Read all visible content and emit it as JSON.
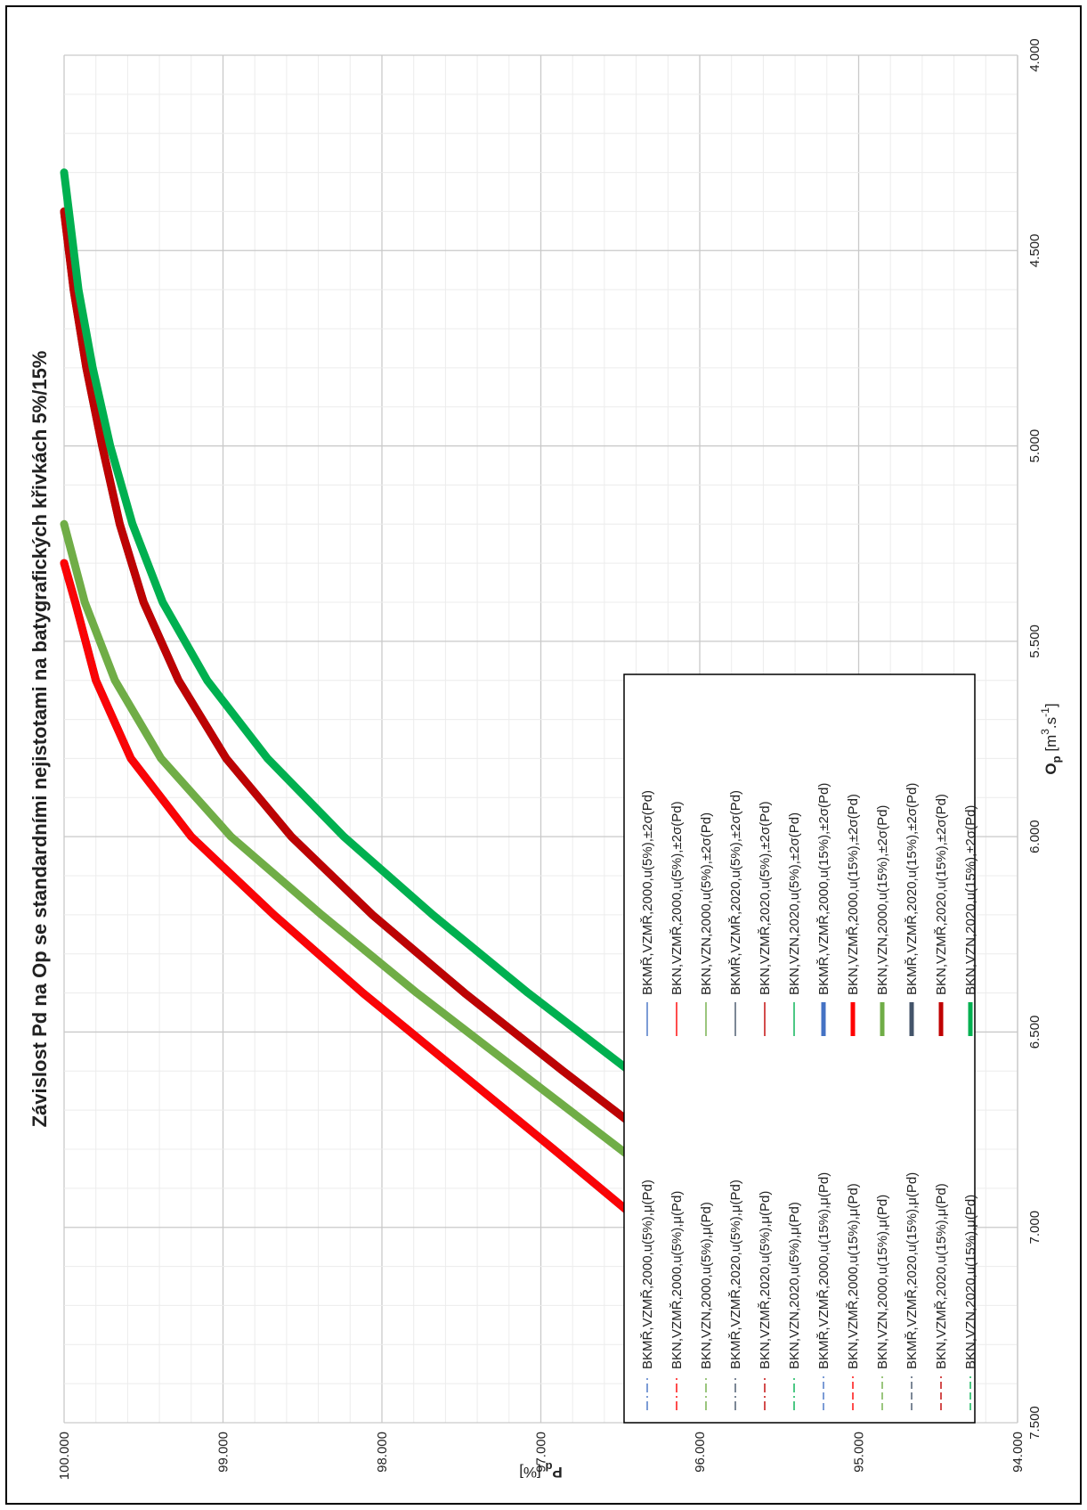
{
  "chart_data": {
    "type": "line",
    "title": "Závislost Pd na Op se standardními nejistotami na batygrafických křivkách 5%/15%",
    "xlabel": {
      "main": "O",
      "sub": "p",
      "unit_open": " [m",
      "sup": "3",
      "unit_mid": ".s",
      "sup2": "-1",
      "unit_close": "]"
    },
    "ylabel": {
      "main": "P",
      "sub": "d",
      "unit": " [%]"
    },
    "xlim": [
      4.0,
      7.5
    ],
    "ylim": [
      94.0,
      100.0
    ],
    "x_reversed": true,
    "x_ticks": [
      "7.500",
      "7.000",
      "6.500",
      "6.000",
      "5.500",
      "5.000",
      "4.500",
      "4.000"
    ],
    "y_ticks": [
      "94.000",
      "95.000",
      "96.000",
      "97.000",
      "98.000",
      "99.000",
      "100.000"
    ],
    "grid": true,
    "legend_position": "inside-lower-right",
    "series": [
      {
        "name": "BKMŘ,VZMŘ,2000,u(5%),μ(Pd)",
        "color": "#4472C4",
        "dash": "dashdot",
        "width": 1.4,
        "x": [
          7.0,
          6.8,
          6.6,
          6.4,
          6.2,
          6.0,
          5.8,
          5.6,
          5.4,
          5.3
        ],
        "y": [
          96.33,
          96.92,
          97.52,
          98.12,
          98.68,
          99.2,
          99.58,
          99.8,
          99.93,
          100.0
        ]
      },
      {
        "name": "BKN,VZMŘ,2000,u(5%),μ(Pd)",
        "color": "#FF0000",
        "dash": "dashdot",
        "width": 1.4,
        "x": [
          7.0,
          6.8,
          6.6,
          6.4,
          6.2,
          6.0,
          5.8,
          5.6,
          5.4,
          5.3
        ],
        "y": [
          96.33,
          96.92,
          97.52,
          98.12,
          98.68,
          99.2,
          99.58,
          99.8,
          99.93,
          100.0
        ]
      },
      {
        "name": "BKN,VZN,2000,u(5%),μ(Pd)",
        "color": "#70AD47",
        "dash": "dashdot",
        "width": 1.4,
        "x": [
          7.0,
          6.8,
          6.6,
          6.4,
          6.2,
          6.0,
          5.8,
          5.6,
          5.4,
          5.2
        ],
        "y": [
          95.86,
          96.5,
          97.14,
          97.78,
          98.38,
          98.95,
          99.39,
          99.68,
          99.87,
          100.0
        ]
      },
      {
        "name": "BKMŘ,VZMŘ,2020,u(5%),μ(Pd)",
        "color": "#44546A",
        "dash": "dashdot",
        "width": 1.4,
        "x": [
          7.0,
          6.8,
          6.6,
          6.4,
          6.2,
          6.0,
          5.8,
          5.6,
          5.4,
          5.2,
          5.0,
          4.8,
          4.6,
          4.4
        ],
        "y": [
          95.58,
          96.22,
          96.86,
          97.48,
          98.06,
          98.57,
          98.98,
          99.28,
          99.5,
          99.65,
          99.76,
          99.86,
          99.94,
          100.0
        ]
      },
      {
        "name": "BKN,VZMŘ,2020,u(5%),μ(Pd)",
        "color": "#C00000",
        "dash": "dashdot",
        "width": 1.4,
        "x": [
          7.0,
          6.8,
          6.6,
          6.4,
          6.2,
          6.0,
          5.8,
          5.6,
          5.4,
          5.2,
          5.0,
          4.8,
          4.6,
          4.4
        ],
        "y": [
          95.58,
          96.22,
          96.86,
          97.48,
          98.06,
          98.57,
          98.98,
          99.28,
          99.5,
          99.65,
          99.76,
          99.86,
          99.94,
          100.0
        ]
      },
      {
        "name": "BKN,VZN,2020,u(5%),μ(Pd)",
        "color": "#00B050",
        "dash": "dashdot",
        "width": 1.4,
        "x": [
          7.0,
          6.8,
          6.6,
          6.4,
          6.2,
          6.0,
          5.8,
          5.6,
          5.4,
          5.2,
          5.0,
          4.8,
          4.6,
          4.4,
          4.3
        ],
        "y": [
          95.17,
          95.8,
          96.44,
          97.08,
          97.68,
          98.24,
          98.72,
          99.1,
          99.38,
          99.57,
          99.71,
          99.82,
          99.91,
          99.97,
          100.0
        ]
      },
      {
        "name": "BKMŘ,VZMŘ,2000,u(15%),μ(Pd)",
        "color": "#4472C4",
        "dash": "dash",
        "width": 1.4,
        "x": [
          7.0,
          6.8,
          6.6,
          6.4,
          6.2,
          6.0,
          5.8,
          5.6,
          5.4,
          5.3
        ],
        "y": [
          96.33,
          96.92,
          97.52,
          98.12,
          98.68,
          99.2,
          99.58,
          99.8,
          99.93,
          100.0
        ]
      },
      {
        "name": "BKN,VZMŘ,2000,u(15%),μ(Pd)",
        "color": "#FF0000",
        "dash": "dash",
        "width": 1.4,
        "x": [
          7.0,
          6.8,
          6.6,
          6.4,
          6.2,
          6.0,
          5.8,
          5.6,
          5.4,
          5.3
        ],
        "y": [
          96.33,
          96.92,
          97.52,
          98.12,
          98.68,
          99.2,
          99.58,
          99.8,
          99.93,
          100.0
        ]
      },
      {
        "name": "BKN,VZN,2000,u(15%),μ(Pd)",
        "color": "#70AD47",
        "dash": "dash",
        "width": 1.4,
        "x": [
          7.0,
          6.8,
          6.6,
          6.4,
          6.2,
          6.0,
          5.8,
          5.6,
          5.4,
          5.2
        ],
        "y": [
          95.86,
          96.5,
          97.14,
          97.78,
          98.38,
          98.95,
          99.39,
          99.68,
          99.87,
          100.0
        ]
      },
      {
        "name": "BKMŘ,VZMŘ,2020,u(15%),μ(Pd)",
        "color": "#44546A",
        "dash": "dash",
        "width": 1.4,
        "x": [
          7.0,
          6.8,
          6.6,
          6.4,
          6.2,
          6.0,
          5.8,
          5.6,
          5.4,
          5.2,
          5.0,
          4.8,
          4.6,
          4.4
        ],
        "y": [
          95.58,
          96.22,
          96.86,
          97.48,
          98.06,
          98.57,
          98.98,
          99.28,
          99.5,
          99.65,
          99.76,
          99.86,
          99.94,
          100.0
        ]
      },
      {
        "name": "BKN,VZMŘ,2020,u(15%),μ(Pd)",
        "color": "#C00000",
        "dash": "dash",
        "width": 1.4,
        "x": [
          7.0,
          6.8,
          6.6,
          6.4,
          6.2,
          6.0,
          5.8,
          5.6,
          5.4,
          5.2,
          5.0,
          4.8,
          4.6,
          4.4
        ],
        "y": [
          95.58,
          96.22,
          96.86,
          97.48,
          98.06,
          98.57,
          98.98,
          99.28,
          99.5,
          99.65,
          99.76,
          99.86,
          99.94,
          100.0
        ]
      },
      {
        "name": "BKN,VZN,2020,u(15%),μ(Pd)",
        "color": "#00B050",
        "dash": "dash",
        "width": 1.4,
        "x": [
          7.0,
          6.8,
          6.6,
          6.4,
          6.2,
          6.0,
          5.8,
          5.6,
          5.4,
          5.2,
          5.0,
          4.8,
          4.6,
          4.4,
          4.3
        ],
        "y": [
          95.17,
          95.8,
          96.44,
          97.08,
          97.68,
          98.24,
          98.72,
          99.1,
          99.38,
          99.57,
          99.71,
          99.82,
          99.91,
          99.97,
          100.0
        ]
      },
      {
        "name": "BKMŘ,VZMŘ,2000,u(5%),±2σ(Pd)",
        "color": "#4472C4",
        "dash": "solid",
        "width": 1.4,
        "x": [
          7.0,
          6.8,
          6.6,
          6.4,
          6.2,
          6.0,
          5.8,
          5.6,
          5.4,
          5.3
        ],
        "y": [
          96.33,
          96.92,
          97.52,
          98.12,
          98.68,
          99.2,
          99.58,
          99.8,
          99.93,
          100.0
        ]
      },
      {
        "name": "BKN,VZMŘ,2000,u(5%),±2σ(Pd)",
        "color": "#FF0000",
        "dash": "solid",
        "width": 1.4,
        "x": [
          7.0,
          6.8,
          6.6,
          6.4,
          6.2,
          6.0,
          5.8,
          5.6,
          5.4,
          5.3
        ],
        "y": [
          96.33,
          96.92,
          97.52,
          98.12,
          98.68,
          99.2,
          99.58,
          99.8,
          99.93,
          100.0
        ]
      },
      {
        "name": "BKN,VZN,2000,u(5%),±2σ(Pd)",
        "color": "#70AD47",
        "dash": "solid",
        "width": 1.4,
        "x": [
          7.0,
          6.8,
          6.6,
          6.4,
          6.2,
          6.0,
          5.8,
          5.6,
          5.4,
          5.2
        ],
        "y": [
          95.86,
          96.5,
          97.14,
          97.78,
          98.38,
          98.95,
          99.39,
          99.68,
          99.87,
          100.0
        ]
      },
      {
        "name": "BKMŘ,VZMŘ,2020,u(5%),±2σ(Pd)",
        "color": "#44546A",
        "dash": "solid",
        "width": 1.4,
        "x": [
          7.0,
          6.8,
          6.6,
          6.4,
          6.2,
          6.0,
          5.8,
          5.6,
          5.4,
          5.2,
          5.0,
          4.8,
          4.6,
          4.4
        ],
        "y": [
          95.58,
          96.22,
          96.86,
          97.48,
          98.06,
          98.57,
          98.98,
          99.28,
          99.5,
          99.65,
          99.76,
          99.86,
          99.94,
          100.0
        ]
      },
      {
        "name": "BKN,VZMŘ,2020,u(5%),±2σ(Pd)",
        "color": "#C00000",
        "dash": "solid",
        "width": 1.4,
        "x": [
          7.0,
          6.8,
          6.6,
          6.4,
          6.2,
          6.0,
          5.8,
          5.6,
          5.4,
          5.2,
          5.0,
          4.8,
          4.6,
          4.4
        ],
        "y": [
          95.58,
          96.22,
          96.86,
          97.48,
          98.06,
          98.57,
          98.98,
          99.28,
          99.5,
          99.65,
          99.76,
          99.86,
          99.94,
          100.0
        ]
      },
      {
        "name": "BKN,VZN,2020,u(5%),±2σ(Pd)",
        "color": "#00B050",
        "dash": "solid",
        "width": 1.4,
        "x": [
          7.0,
          6.8,
          6.6,
          6.4,
          6.2,
          6.0,
          5.8,
          5.6,
          5.4,
          5.2,
          5.0,
          4.8,
          4.6,
          4.4,
          4.3
        ],
        "y": [
          95.17,
          95.8,
          96.44,
          97.08,
          97.68,
          98.24,
          98.72,
          99.1,
          99.38,
          99.57,
          99.71,
          99.82,
          99.91,
          99.97,
          100.0
        ]
      },
      {
        "name": "BKMŘ,VZMŘ,2000,u(15%),±2σ(Pd)",
        "color": "#4472C4",
        "dash": "solid",
        "width": 9,
        "x": [
          7.0,
          6.8,
          6.6,
          6.4,
          6.2,
          6.0,
          5.8,
          5.6,
          5.4,
          5.3
        ],
        "y": [
          96.33,
          96.92,
          97.52,
          98.12,
          98.68,
          99.2,
          99.58,
          99.8,
          99.93,
          100.0
        ]
      },
      {
        "name": "BKN,VZMŘ,2000,u(15%),±2σ(Pd)",
        "color": "#FF0000",
        "dash": "solid",
        "width": 9,
        "x": [
          7.0,
          6.8,
          6.6,
          6.4,
          6.2,
          6.0,
          5.8,
          5.6,
          5.4,
          5.3
        ],
        "y": [
          96.33,
          96.92,
          97.52,
          98.12,
          98.68,
          99.2,
          99.58,
          99.8,
          99.93,
          100.0
        ]
      },
      {
        "name": "BKN,VZN,2000,u(15%),±2σ(Pd)",
        "color": "#70AD47",
        "dash": "solid",
        "width": 9,
        "x": [
          7.0,
          6.8,
          6.6,
          6.4,
          6.2,
          6.0,
          5.8,
          5.6,
          5.4,
          5.2
        ],
        "y": [
          95.86,
          96.5,
          97.14,
          97.78,
          98.38,
          98.95,
          99.39,
          99.68,
          99.87,
          100.0
        ]
      },
      {
        "name": "BKMŘ,VZMŘ,2020,u(15%),±2σ(Pd)",
        "color": "#44546A",
        "dash": "solid",
        "width": 9,
        "x": [
          7.0,
          6.8,
          6.6,
          6.4,
          6.2,
          6.0,
          5.8,
          5.6,
          5.4,
          5.2,
          5.0,
          4.8,
          4.6,
          4.4
        ],
        "y": [
          95.58,
          96.22,
          96.86,
          97.48,
          98.06,
          98.57,
          98.98,
          99.28,
          99.5,
          99.65,
          99.76,
          99.86,
          99.94,
          100.0
        ]
      },
      {
        "name": "BKN,VZMŘ,2020,u(15%),±2σ(Pd)",
        "color": "#C00000",
        "dash": "solid",
        "width": 9,
        "x": [
          7.0,
          6.8,
          6.6,
          6.4,
          6.2,
          6.0,
          5.8,
          5.6,
          5.4,
          5.2,
          5.0,
          4.8,
          4.6,
          4.4
        ],
        "y": [
          95.58,
          96.22,
          96.86,
          97.48,
          98.06,
          98.57,
          98.98,
          99.28,
          99.5,
          99.65,
          99.76,
          99.86,
          99.94,
          100.0
        ]
      },
      {
        "name": "BKN,VZN,2020,u(15%),±2σ(Pd)",
        "color": "#00B050",
        "dash": "solid",
        "width": 9,
        "x": [
          7.0,
          6.8,
          6.6,
          6.4,
          6.2,
          6.0,
          5.8,
          5.6,
          5.4,
          5.2,
          5.0,
          4.8,
          4.6,
          4.4,
          4.3
        ],
        "y": [
          95.17,
          95.8,
          96.44,
          97.08,
          97.68,
          98.24,
          98.72,
          99.1,
          99.38,
          99.57,
          99.71,
          99.82,
          99.91,
          99.97,
          100.0
        ]
      }
    ]
  }
}
